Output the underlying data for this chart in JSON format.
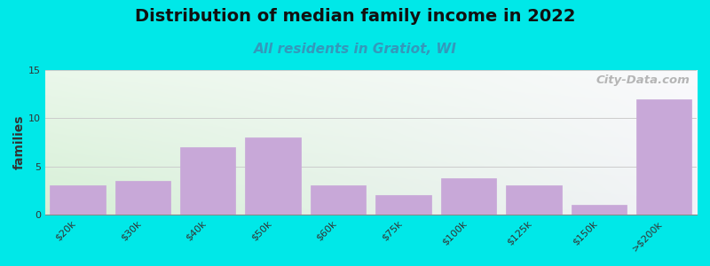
{
  "title": "Distribution of median family income in 2022",
  "subtitle": "All residents in Gratiot, WI",
  "categories": [
    "$20k",
    "$30k",
    "$40k",
    "$50k",
    "$60k",
    "$75k",
    "$100k",
    "$125k",
    "$150k",
    ">$200k"
  ],
  "values": [
    3,
    3.5,
    7,
    8,
    3,
    2,
    3.8,
    3,
    1,
    12
  ],
  "bar_color": "#c8a8d8",
  "bar_edge_color": "#c8a8d8",
  "ylabel": "families",
  "ylim": [
    0,
    15
  ],
  "yticks": [
    0,
    5,
    10,
    15
  ],
  "background_outer": "#00e8e8",
  "background_grad_topleft": "#f0f8f0",
  "background_grad_topright": "#fafafa",
  "background_grad_bottomleft": "#d8eed8",
  "background_grad_bottomright": "#f5f0f5",
  "title_fontsize": 14,
  "subtitle_fontsize": 11,
  "subtitle_color": "#3399bb",
  "watermark_text": "City-Data.com",
  "grid_color": "#cccccc",
  "tick_label_fontsize": 8,
  "ylabel_fontsize": 10
}
